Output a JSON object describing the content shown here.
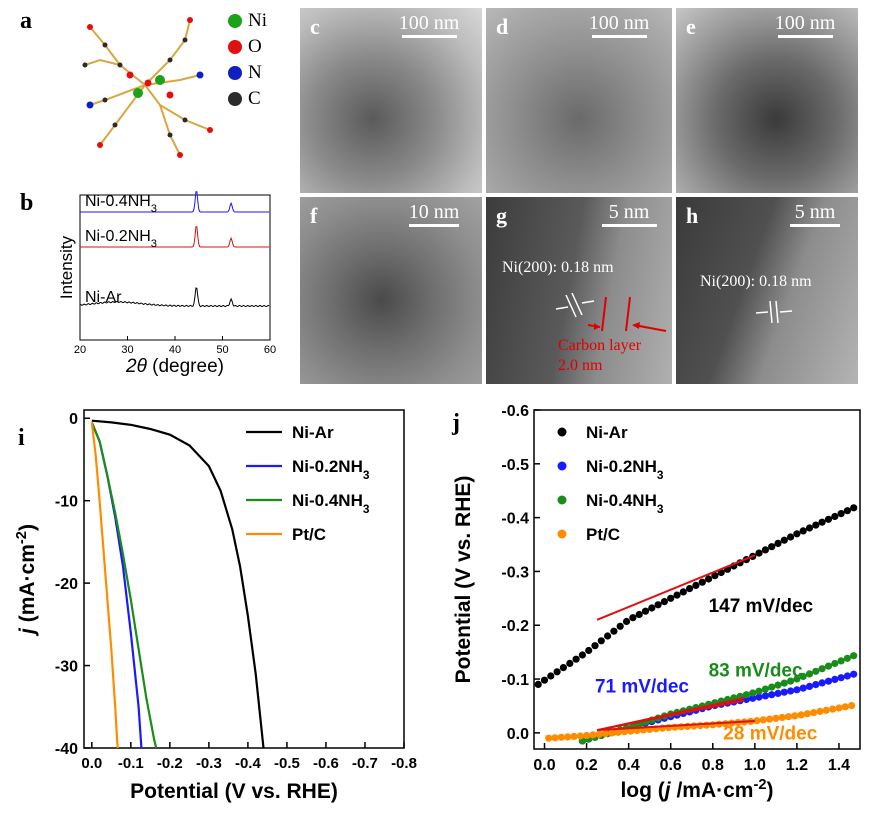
{
  "panel_labels": {
    "a": "a",
    "b": "b",
    "c": "c",
    "d": "d",
    "e": "e",
    "f": "f",
    "g": "g",
    "h": "h",
    "i": "i",
    "j": "j"
  },
  "legend_a": [
    {
      "label": "Ni",
      "color": "#1aa31a"
    },
    {
      "label": "O",
      "color": "#e01010"
    },
    {
      "label": "N",
      "color": "#1020c0"
    },
    {
      "label": "C",
      "color": "#2a2a2a"
    }
  ],
  "tem_panels": [
    {
      "id": "c",
      "scale": "100 nm"
    },
    {
      "id": "d",
      "scale": "100 nm"
    },
    {
      "id": "e",
      "scale": "100 nm"
    },
    {
      "id": "f",
      "scale": "10 nm"
    },
    {
      "id": "g",
      "scale": "5 nm",
      "lattice": "Ni(200): 0.18 nm",
      "carbon_label": "Carbon layer",
      "carbon_thickness": "2.0 nm"
    },
    {
      "id": "h",
      "scale": "5 nm",
      "lattice": "Ni(200): 0.18 nm"
    }
  ],
  "chart_data": [
    {
      "id": "b",
      "type": "line",
      "xlabel": "2θ (degree)",
      "ylabel": "Intensity",
      "xlim": [
        20,
        60
      ],
      "xticks": [
        20,
        30,
        40,
        50,
        60
      ],
      "series": [
        {
          "name": "Ni-0.4NH3",
          "color": "#1a1aff",
          "peaks": [
            {
              "x": 44.5,
              "h": 1.0
            },
            {
              "x": 51.8,
              "h": 0.4
            }
          ]
        },
        {
          "name": "Ni-0.2NH3",
          "color": "#e01010",
          "peaks": [
            {
              "x": 44.5,
              "h": 1.0
            },
            {
              "x": 51.8,
              "h": 0.4
            }
          ]
        },
        {
          "name": "Ni-Ar",
          "color": "#000000",
          "peaks": [
            {
              "x": 44.5,
              "h": 0.9
            },
            {
              "x": 51.8,
              "h": 0.3
            }
          ]
        }
      ]
    },
    {
      "id": "i",
      "type": "line",
      "xlabel": "Potential (V vs. RHE)",
      "ylabel": "j (mA·cm-2)",
      "xlim": [
        0.02,
        -0.8
      ],
      "ylim": [
        -40,
        1
      ],
      "xticks": [
        0.0,
        -0.1,
        -0.2,
        -0.3,
        -0.4,
        -0.5,
        -0.6,
        -0.7,
        -0.8
      ],
      "yticks": [
        0,
        -10,
        -20,
        -30,
        -40
      ],
      "series": [
        {
          "name": "Ni-Ar",
          "color": "#000000",
          "x": [
            0.0,
            -0.05,
            -0.1,
            -0.15,
            -0.2,
            -0.25,
            -0.3,
            -0.33,
            -0.36,
            -0.38,
            -0.4,
            -0.42,
            -0.44
          ],
          "y": [
            -0.3,
            -0.5,
            -0.8,
            -1.3,
            -2.0,
            -3.3,
            -5.8,
            -8.8,
            -13.5,
            -18,
            -24,
            -31,
            -40
          ]
        },
        {
          "name": "Ni-0.2NH3",
          "color": "#1a1aff",
          "x": [
            0.0,
            -0.02,
            -0.04,
            -0.06,
            -0.08,
            -0.1,
            -0.12,
            -0.127
          ],
          "y": [
            -0.5,
            -2.8,
            -7,
            -12,
            -18,
            -26,
            -35,
            -40
          ]
        },
        {
          "name": "Ni-0.4NH3",
          "color": "#1a8c1a",
          "x": [
            0.0,
            -0.02,
            -0.04,
            -0.06,
            -0.08,
            -0.1,
            -0.12,
            -0.14,
            -0.16,
            -0.165
          ],
          "y": [
            -0.5,
            -2.8,
            -7,
            -11.5,
            -16.5,
            -22,
            -28,
            -34,
            -39,
            -40
          ]
        },
        {
          "name": "Pt/C",
          "color": "#ff8c00",
          "x": [
            0.0,
            -0.01,
            -0.02,
            -0.03,
            -0.04,
            -0.05,
            -0.06,
            -0.066
          ],
          "y": [
            -0.5,
            -4.5,
            -10,
            -16,
            -22,
            -28,
            -35,
            -40
          ]
        }
      ]
    },
    {
      "id": "j",
      "type": "scatter",
      "xlabel": "log (j /mA·cm-2)",
      "ylabel": "Potential (V vs. RHE)",
      "xlim": [
        -0.05,
        1.5
      ],
      "ylim": [
        0.03,
        -0.6
      ],
      "xticks": [
        0.0,
        0.2,
        0.4,
        0.6,
        0.8,
        1.0,
        1.2,
        1.4
      ],
      "yticks": [
        0.0,
        -0.1,
        -0.2,
        -0.3,
        -0.4,
        -0.5,
        -0.6
      ],
      "series": [
        {
          "name": "Ni-Ar",
          "color": "#000000",
          "x_range": [
            -0.03,
            1.48
          ],
          "curve": [
            [
              -0.03,
              -0.09
            ],
            [
              0.2,
              -0.15
            ],
            [
              0.4,
              -0.21
            ],
            [
              0.6,
              -0.25
            ],
            [
              0.8,
              -0.29
            ],
            [
              1.0,
              -0.33
            ],
            [
              1.2,
              -0.37
            ],
            [
              1.48,
              -0.42
            ]
          ]
        },
        {
          "name": "Ni-0.2NH3",
          "color": "#1a1aff",
          "x_range": [
            0.18,
            1.48
          ],
          "curve": [
            [
              0.18,
              0.015
            ],
            [
              0.4,
              -0.01
            ],
            [
              0.6,
              -0.03
            ],
            [
              0.8,
              -0.05
            ],
            [
              1.0,
              -0.065
            ],
            [
              1.2,
              -0.08
            ],
            [
              1.48,
              -0.11
            ]
          ]
        },
        {
          "name": "Ni-0.4NH3",
          "color": "#1a8c1a",
          "x_range": [
            0.18,
            1.48
          ],
          "curve": [
            [
              0.18,
              0.015
            ],
            [
              0.4,
              -0.01
            ],
            [
              0.6,
              -0.035
            ],
            [
              0.8,
              -0.055
            ],
            [
              1.0,
              -0.075
            ],
            [
              1.2,
              -0.1
            ],
            [
              1.48,
              -0.145
            ]
          ]
        },
        {
          "name": "Pt/C",
          "color": "#ff8c00",
          "x_range": [
            0.02,
            1.48
          ],
          "curve": [
            [
              0.02,
              0.01
            ],
            [
              0.2,
              0.005
            ],
            [
              0.4,
              -0.003
            ],
            [
              0.6,
              -0.01
            ],
            [
              0.8,
              -0.015
            ],
            [
              1.0,
              -0.022
            ],
            [
              1.2,
              -0.032
            ],
            [
              1.48,
              -0.052
            ]
          ]
        }
      ],
      "fits": [
        {
          "label": "147 mV/dec",
          "from": [
            0.25,
            -0.21
          ],
          "to": [
            1.0,
            -0.33
          ],
          "color": "#e01010"
        },
        {
          "label": "83 mV/dec",
          "from": [
            0.25,
            -0.005
          ],
          "to": [
            0.95,
            -0.065
          ],
          "color": "#e01010"
        },
        {
          "label": "71 mV/dec",
          "from": [
            0.25,
            -0.005
          ],
          "to": [
            0.95,
            -0.06
          ],
          "color": "#e01010"
        },
        {
          "label": "28 mV/dec",
          "from": [
            0.25,
            -0.005
          ],
          "to": [
            1.0,
            -0.022
          ],
          "color": "#e01010"
        }
      ]
    }
  ]
}
